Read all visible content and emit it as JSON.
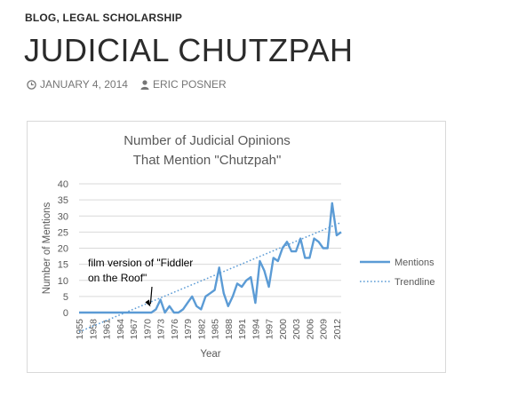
{
  "post": {
    "categories": [
      {
        "label": "BLOG"
      },
      {
        "label": "LEGAL SCHOLARSHIP"
      }
    ],
    "category_separator": ", ",
    "title": "JUDICIAL CHUTZPAH",
    "date": "JANUARY 4, 2014",
    "author": "ERIC POSNER"
  },
  "colors": {
    "series": "#5b9bd5",
    "text": "#2b2b2b",
    "meta": "#767676",
    "axis_text": "#595959",
    "grid": "#d9d9d9"
  },
  "chart_data": {
    "type": "line",
    "title_lines": [
      "Number of Judicial Opinions",
      "That Mention \"Chutzpah\""
    ],
    "xlabel": "Year",
    "ylabel": "Number of Mentions",
    "ylim": [
      0,
      40
    ],
    "yticks": [
      0,
      5,
      10,
      15,
      20,
      25,
      30,
      35,
      40
    ],
    "x_tick_labels": [
      "1955",
      "1958",
      "1961",
      "1964",
      "1967",
      "1970",
      "1973",
      "1976",
      "1979",
      "1982",
      "1985",
      "1988",
      "1991",
      "1994",
      "1997",
      "2000",
      "2003",
      "2006",
      "2009",
      "2012"
    ],
    "x_start": 1955,
    "x_end": 2013,
    "grid": true,
    "legend_position": "right",
    "series": [
      {
        "name": "Mentions",
        "style": "solid",
        "x": [
          1955,
          1956,
          1957,
          1958,
          1959,
          1960,
          1961,
          1962,
          1963,
          1964,
          1965,
          1966,
          1967,
          1968,
          1969,
          1970,
          1971,
          1972,
          1973,
          1974,
          1975,
          1976,
          1977,
          1978,
          1979,
          1980,
          1981,
          1982,
          1983,
          1984,
          1985,
          1986,
          1987,
          1988,
          1989,
          1990,
          1991,
          1992,
          1993,
          1994,
          1995,
          1996,
          1997,
          1998,
          1999,
          2000,
          2001,
          2002,
          2003,
          2004,
          2005,
          2006,
          2007,
          2008,
          2009,
          2010,
          2011,
          2012,
          2013
        ],
        "y": [
          0,
          0,
          0,
          0,
          0,
          0,
          0,
          0,
          0,
          0,
          0,
          0,
          0,
          0,
          0,
          0,
          0,
          1,
          4,
          0,
          2,
          0,
          0,
          1,
          3,
          5,
          2,
          1,
          5,
          6,
          7,
          14,
          6,
          2,
          5,
          9,
          8,
          10,
          11,
          3,
          16,
          13,
          8,
          17,
          16,
          20,
          22,
          19,
          19,
          23,
          17,
          17,
          23,
          22,
          20,
          20,
          34,
          24,
          25
        ]
      },
      {
        "name": "Trendline",
        "style": "dotted",
        "x": [
          1955,
          2013
        ],
        "y": [
          -6,
          28
        ]
      }
    ],
    "annotations": [
      {
        "lines": [
          "film version of \"Fiddler",
          "on the Roof\""
        ],
        "x": 1971,
        "y": 1
      }
    ]
  }
}
